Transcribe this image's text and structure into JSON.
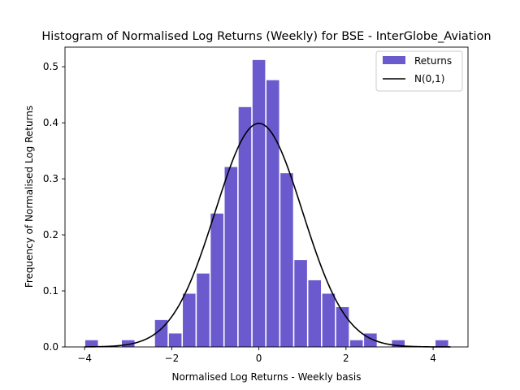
{
  "chart_data": {
    "type": "bar",
    "title": "Histogram of Normalised Log Returns (Weekly) for BSE - InterGlobe_Aviation",
    "xlabel": "Normalised Log Returns - Weekly basis",
    "ylabel": "Frequency of Normalised Log Returns",
    "xlim": [
      -4.45,
      4.8
    ],
    "ylim": [
      0,
      0.535
    ],
    "xticks": [
      -4,
      -2,
      0,
      2,
      4
    ],
    "yticks": [
      0.0,
      0.1,
      0.2,
      0.3,
      0.4,
      0.5
    ],
    "legend_position": "top-right",
    "grid": false,
    "bar_width": 0.29,
    "series": [
      {
        "name": "Returns",
        "color": "#6a5acd",
        "x": [
          -3.84,
          -3.0,
          -2.24,
          -1.92,
          -1.6,
          -1.28,
          -0.96,
          -0.64,
          -0.32,
          0.0,
          0.32,
          0.64,
          0.96,
          1.28,
          1.6,
          1.92,
          2.24,
          2.56,
          3.2,
          4.2
        ],
        "values": [
          0.012,
          0.012,
          0.048,
          0.024,
          0.095,
          0.131,
          0.238,
          0.321,
          0.428,
          0.512,
          0.476,
          0.31,
          0.155,
          0.119,
          0.095,
          0.071,
          0.012,
          0.024,
          0.012,
          0.012
        ]
      },
      {
        "name": "N(0,1)",
        "color": "#000000",
        "type": "line",
        "function": "standard normal pdf"
      }
    ]
  }
}
